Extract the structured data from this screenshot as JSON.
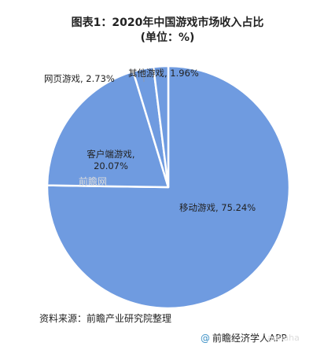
{
  "chart_data": {
    "type": "pie",
    "title": "图表1：2020年中国游戏市场收入占比",
    "subtitle": "(单位：%)",
    "start_angle_deg": 0,
    "direction": "clockwise",
    "slices": [
      {
        "label": "移动游戏",
        "value": 75.24,
        "display": "移动游戏, 75.24%",
        "color": "#6f9be0"
      },
      {
        "label": "客户端游戏",
        "value": 20.07,
        "display": "客户端游戏, 20.07%",
        "color": "#6f9be0"
      },
      {
        "label": "网页游戏",
        "value": 2.73,
        "display": "网页游戏, 2.73%",
        "color": "#6f9be0"
      },
      {
        "label": "其他游戏",
        "value": 1.96,
        "display": "其他游戏, 1.96%",
        "color": "#6f9be0"
      }
    ]
  },
  "footer": {
    "source": "资料来源：前瞻产业研究院整理",
    "brand_mark": "@",
    "brand": "前瞻经济学人APP"
  },
  "watermarks": {
    "logo_text": "前瞻网",
    "handle": "aohaha"
  }
}
